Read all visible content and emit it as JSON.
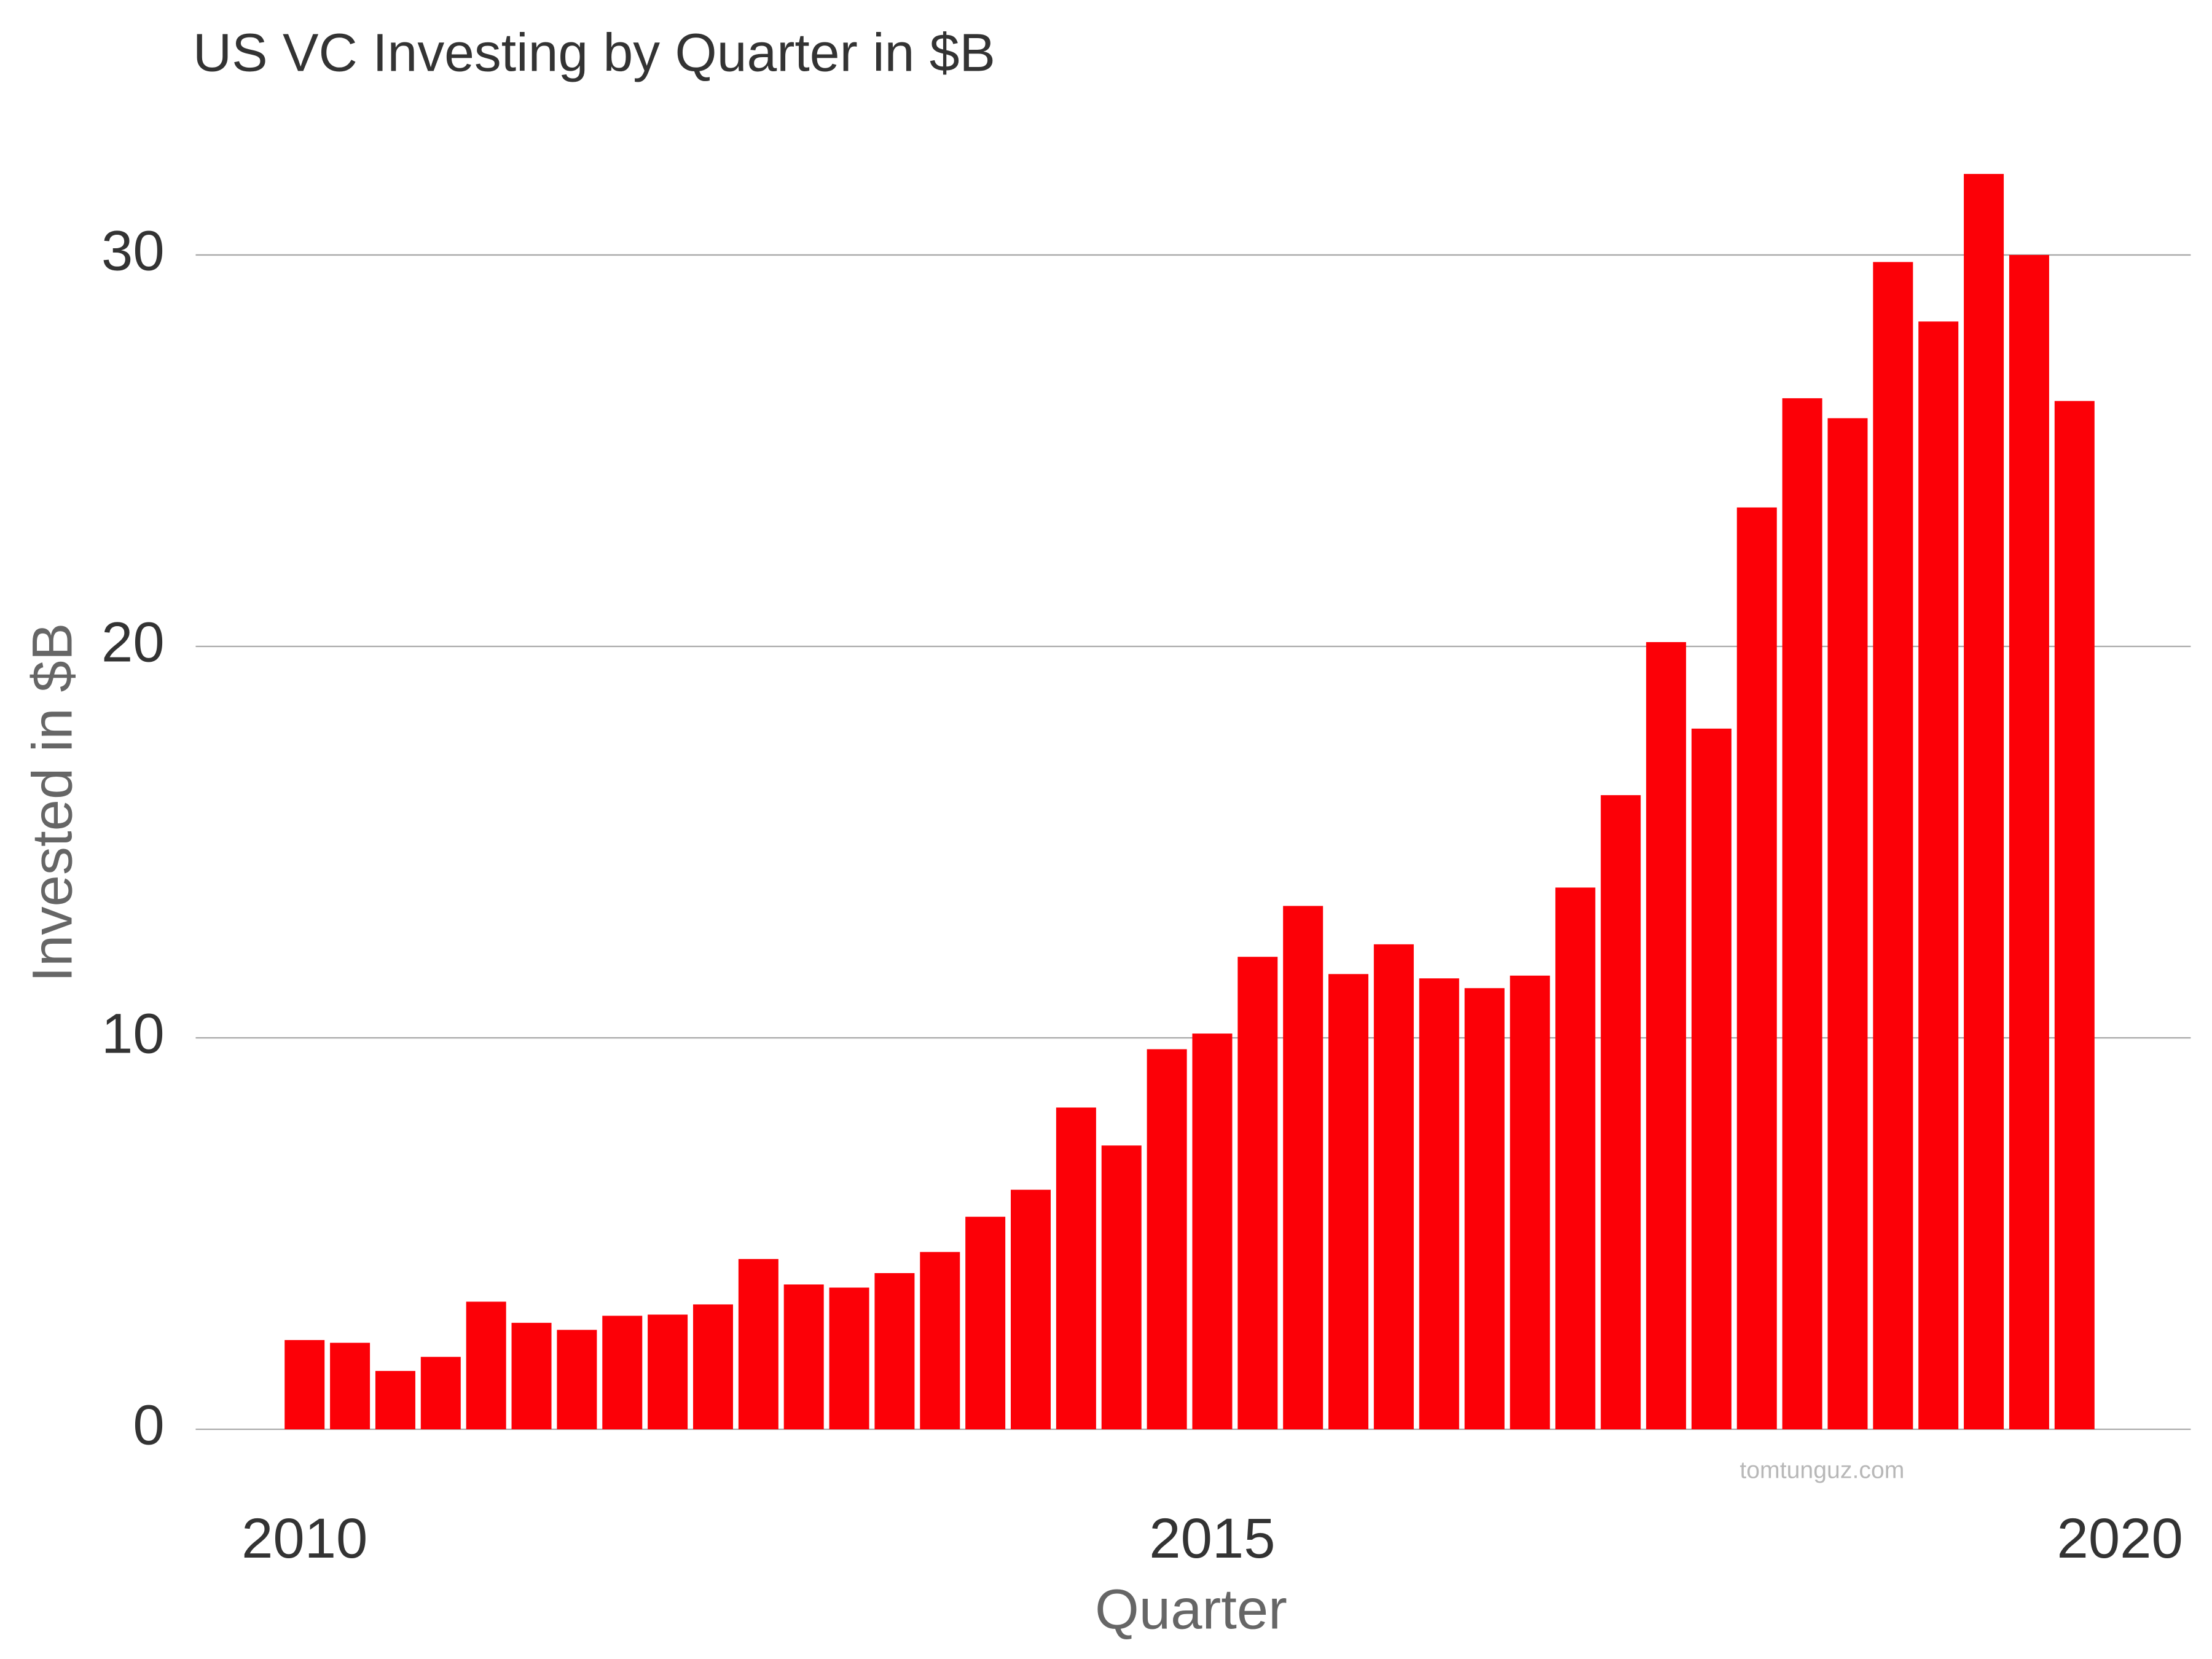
{
  "chart_data": {
    "type": "bar",
    "title": "US VC Investing by Quarter in $B",
    "x_label": "Quarter",
    "y_label": "Invested in $B",
    "annotation": "tomtunguz.com",
    "color": "#fc0007",
    "grid": true,
    "x": [
      2010,
      2010.25,
      2010.5,
      2010.75,
      2011,
      2011.25,
      2011.5,
      2011.75,
      2012,
      2012.25,
      2012.5,
      2012.75,
      2013,
      2013.25,
      2013.5,
      2013.75,
      2014,
      2014.25,
      2014.5,
      2014.75,
      2015,
      2015.25,
      2015.5,
      2015.75,
      2016,
      2016.25,
      2016.5,
      2016.75,
      2017,
      2017.25,
      2017.5,
      2017.75,
      2018,
      2018.25,
      2018.5,
      2018.75,
      2019,
      2019.25,
      2019.5,
      2019.75
    ],
    "values": [
      2.28,
      2.21,
      1.49,
      1.85,
      3.26,
      2.72,
      2.54,
      2.9,
      2.93,
      3.19,
      4.35,
      3.7,
      3.62,
      3.99,
      4.53,
      5.43,
      6.12,
      8.22,
      7.25,
      9.71,
      10.11,
      12.07,
      13.37,
      11.63,
      12.39,
      11.52,
      11.27,
      11.59,
      13.84,
      16.2,
      20.11,
      17.9,
      23.55,
      26.34,
      25.83,
      29.82,
      28.3,
      32.07,
      30.0,
      26.27
    ],
    "xlim": [
      2009.4,
      2020.39
    ],
    "xticks": [
      2010,
      2015,
      2020
    ],
    "ylim": [
      0,
      33
    ],
    "yticks": [
      0,
      10,
      20,
      30
    ]
  }
}
